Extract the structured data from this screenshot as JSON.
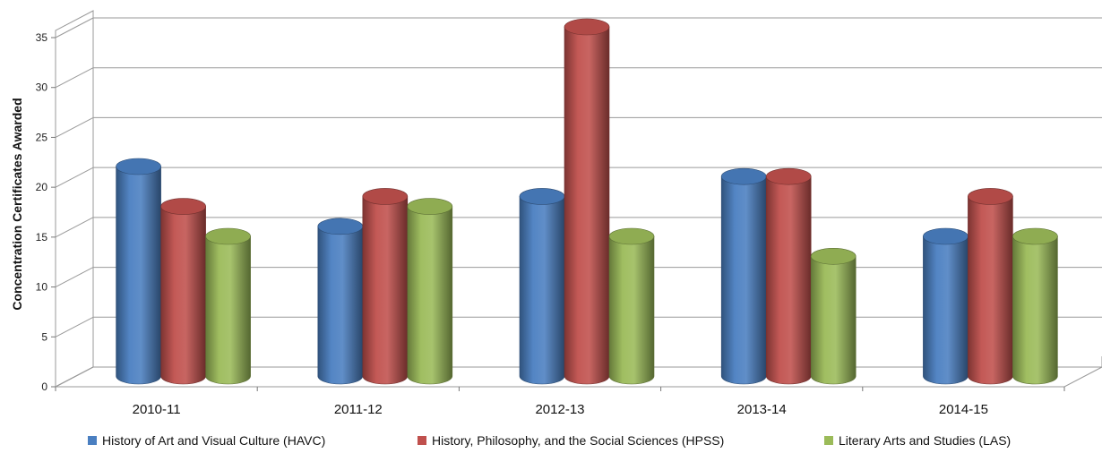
{
  "chart_data": {
    "type": "bar",
    "title": "",
    "xlabel": "",
    "ylabel": "Concentration Certificates Awarded",
    "ylim": [
      0,
      35
    ],
    "yticks": [
      0,
      5,
      10,
      15,
      20,
      25,
      30,
      35
    ],
    "grid": true,
    "style": "3d-cylinder",
    "legend_position": "bottom",
    "categories": [
      "2010-11",
      "2011-12",
      "2012-13",
      "2013-14",
      "2014-15"
    ],
    "series": [
      {
        "name": "History of Art and Visual Culture (HAVC)",
        "color": "#4a7fc1",
        "values": [
          21,
          15,
          18,
          20,
          14
        ]
      },
      {
        "name": "History, Philosophy, and the Social Sciences (HPSS)",
        "color": "#c0504d",
        "values": [
          17,
          18,
          35,
          20,
          18
        ]
      },
      {
        "name": "Literary Arts and Studies (LAS)",
        "color": "#9bbb59",
        "values": [
          14,
          17,
          14,
          12,
          14
        ]
      }
    ]
  }
}
